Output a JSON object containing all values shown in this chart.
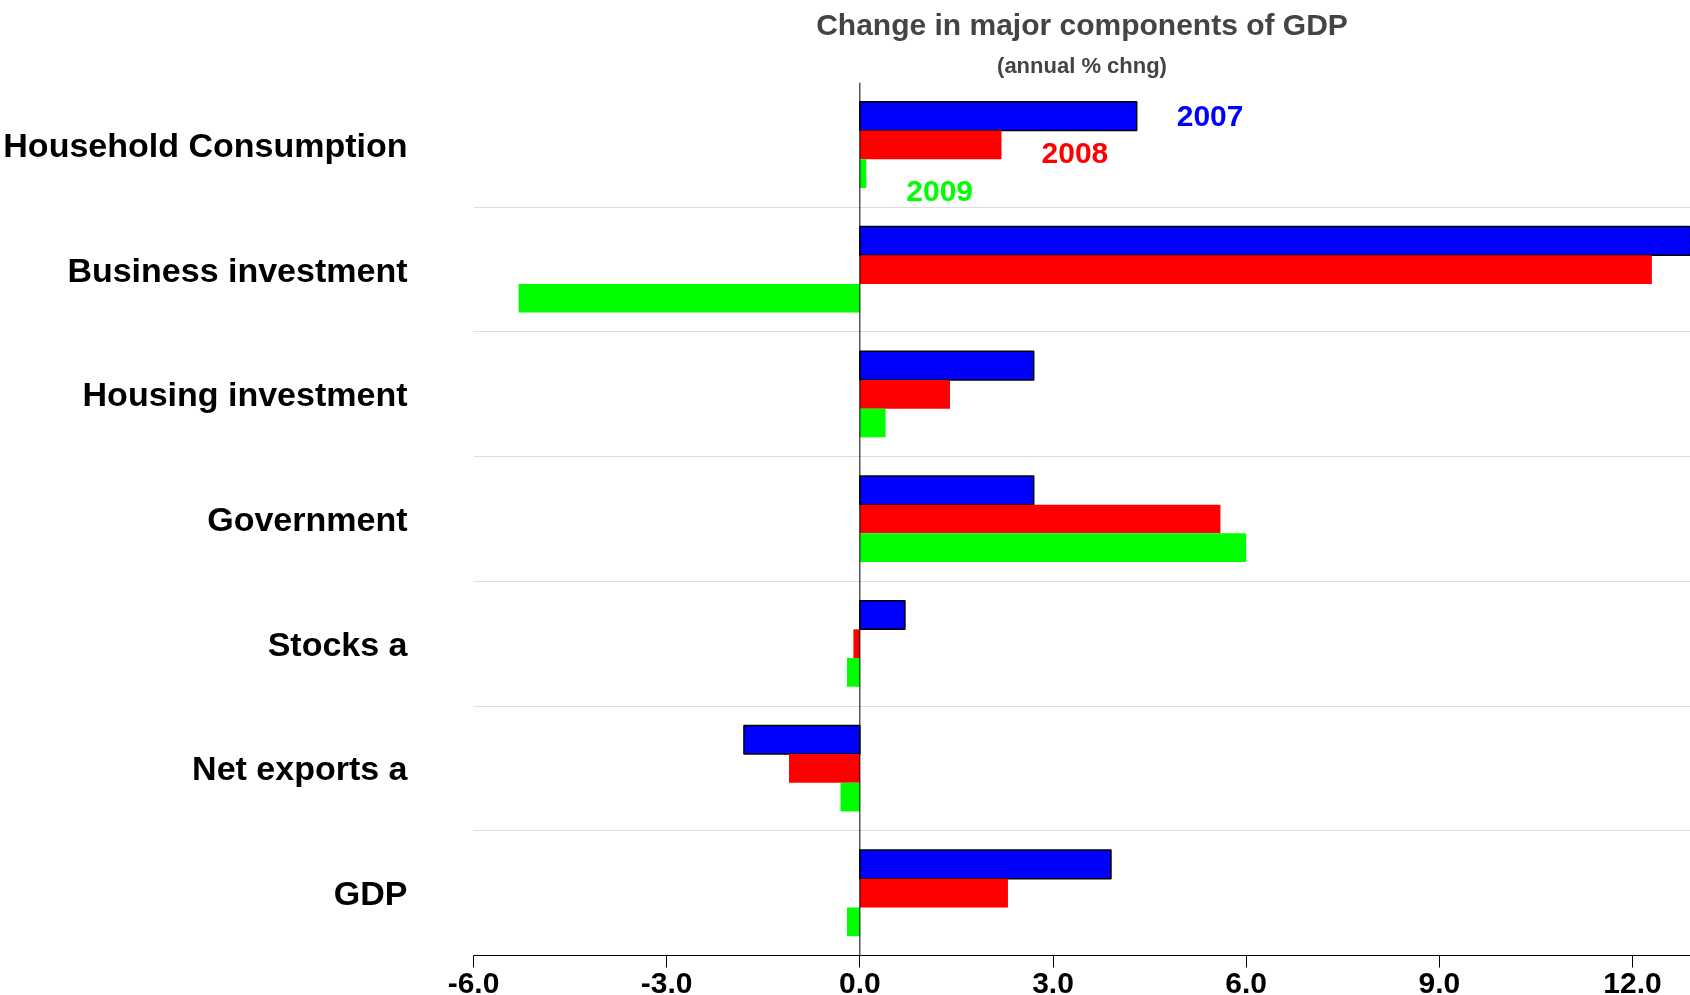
{
  "chart_data": {
    "type": "bar",
    "orientation": "horizontal",
    "title": "Change in major components of GDP",
    "subtitle": "(annual % chng)",
    "categories": [
      "Household Consumption",
      "Business investment",
      "Housing investment",
      "Government",
      "Stocks a",
      "Net exports a",
      "GDP"
    ],
    "series": [
      {
        "name": "2007",
        "color": "#0000ff",
        "values": [
          4.3,
          12.9,
          2.7,
          2.7,
          0.7,
          -1.8,
          3.9
        ]
      },
      {
        "name": "2008",
        "color": "#ff0000",
        "values": [
          2.2,
          12.3,
          1.4,
          5.6,
          -0.1,
          -1.1,
          2.3
        ]
      },
      {
        "name": "2009",
        "color": "#00ff00",
        "values": [
          0.1,
          -5.3,
          0.4,
          6.0,
          -0.2,
          -0.3,
          -0.2
        ]
      }
    ],
    "xlim": [
      -6,
      12.9
    ],
    "xticks": [
      {
        "value": -6,
        "label": "-6.0"
      },
      {
        "value": -3,
        "label": "-3.0"
      },
      {
        "value": 0,
        "label": "0.0"
      },
      {
        "value": 3,
        "label": "3.0"
      },
      {
        "value": 6,
        "label": "6.0"
      },
      {
        "value": 9,
        "label": "9.0"
      },
      {
        "value": 12,
        "label": "12.0"
      }
    ],
    "grid": "y"
  }
}
